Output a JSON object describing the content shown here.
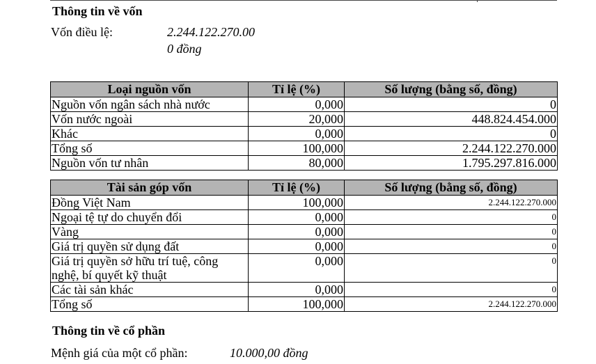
{
  "capital": {
    "heading": "Thông tin về vốn",
    "label": "Vốn điều lệ:",
    "value_line1": "2.244.122.270.00",
    "value_line2": "0 đồng"
  },
  "sources": {
    "headers": [
      "Loại nguồn vốn",
      "Tỉ lệ (%)",
      "Số lượng (bằng số, đồng)"
    ],
    "rows": [
      [
        "Nguồn vốn ngân sách nhà nước",
        "0,000",
        "0"
      ],
      [
        "Vốn nước ngoài",
        "20,000",
        "448.824.454.000"
      ],
      [
        "Khác",
        "0,000",
        "0"
      ],
      [
        "Tổng số",
        "100,000",
        "2.244.122.270.000"
      ],
      [
        "Nguồn vốn tư nhân",
        "80,000",
        "1.795.297.816.000"
      ]
    ]
  },
  "assets": {
    "headers": [
      "Tài sản góp vốn",
      "Tỉ lệ (%)",
      "Số lượng (bằng số, đồng)"
    ],
    "rows": [
      [
        "Đồng Việt Nam",
        "100,000",
        "2.244.122.270.000"
      ],
      [
        "Ngoại tệ tự do chuyển đổi",
        "0,000",
        "0"
      ],
      [
        "Vàng",
        "0,000",
        "0"
      ],
      [
        "Giá trị quyền sử dụng đất",
        "0,000",
        "0"
      ],
      [
        "Giá trị quyền sở hữu trí tuệ, công nghệ, bí quyết kỹ thuật",
        "0,000",
        "0"
      ],
      [
        "Các tài sản khác",
        "0,000",
        "0"
      ],
      [
        "Tổng số",
        "100,000",
        "2.244.122.270.000"
      ]
    ]
  },
  "shares": {
    "heading": "Thông tin về cổ phần",
    "label": "Mệnh giá của một cổ phần:",
    "value": "10.000,00 đồng"
  }
}
